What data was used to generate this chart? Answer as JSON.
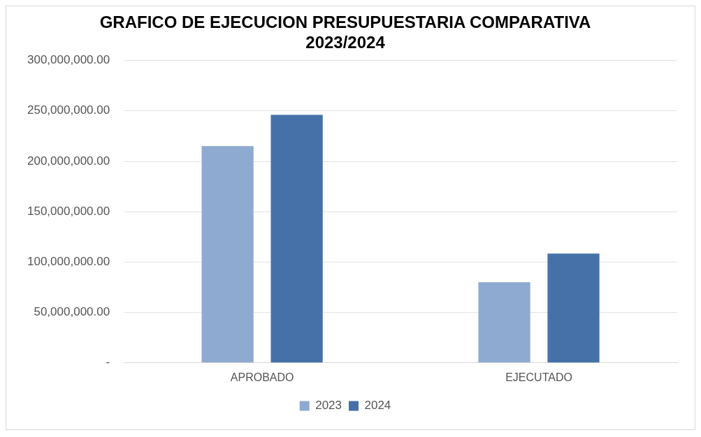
{
  "chart_data": {
    "type": "bar",
    "title": "GRAFICO DE EJECUCION PRESUPUESTARIA COMPARATIVA\n2023/2024",
    "categories": [
      "APROBADO",
      "EJECUTADO"
    ],
    "series": [
      {
        "name": "2023",
        "color": "#8faad0",
        "values": [
          215000000,
          80000000
        ]
      },
      {
        "name": "2024",
        "color": "#4671a8",
        "values": [
          246000000,
          108500000
        ]
      }
    ],
    "ylim": [
      0,
      300000000
    ],
    "yticks": [
      {
        "value": 0,
        "label": "-"
      },
      {
        "value": 50000000,
        "label": "50,000,000.00"
      },
      {
        "value": 100000000,
        "label": "100,000,000.00"
      },
      {
        "value": 150000000,
        "label": "150,000,000.00"
      },
      {
        "value": 200000000,
        "label": "200,000,000.00"
      },
      {
        "value": 250000000,
        "label": "250,000,000.00"
      },
      {
        "value": 300000000,
        "label": "300,000,000.00"
      }
    ],
    "grid": "y",
    "legend": "bottom"
  }
}
